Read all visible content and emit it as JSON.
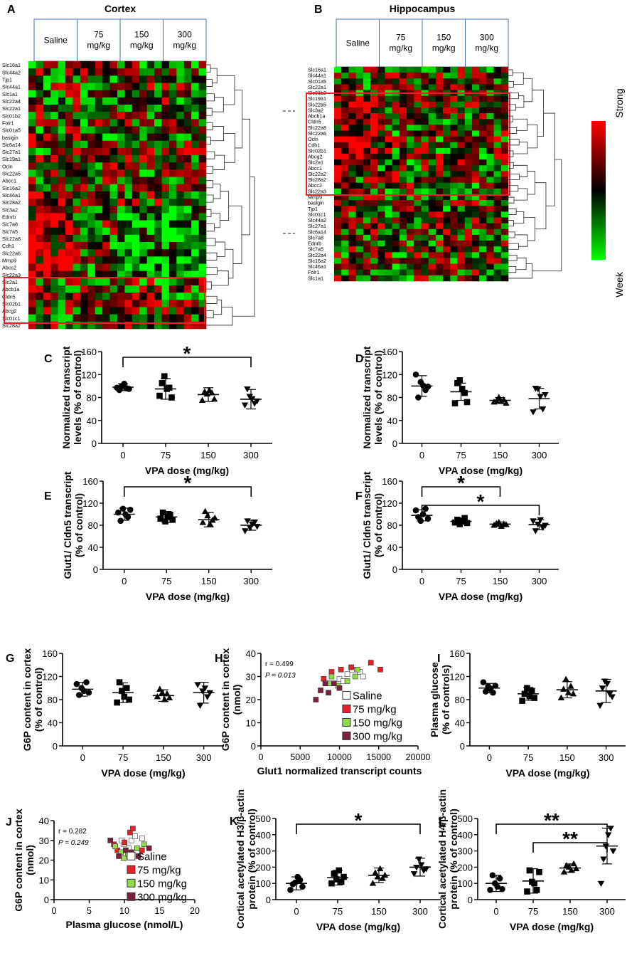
{
  "colors": {
    "strong": "#ff0000",
    "weak": "#00ff00",
    "mid": "#000000",
    "highlight": "#e8202a"
  },
  "heatmaps": [
    {
      "panel": "A",
      "title": "Cortex",
      "groups": [
        "Saline",
        "75 mg/kg",
        "150 mg/kg",
        "300 mg/kg"
      ],
      "genes": [
        "Slc16a1",
        "Slc44a2",
        "Tjp1",
        "Slc44a1",
        "Slc1a1",
        "Slc22a4",
        "Slc22a1",
        "Slc01b2",
        "Folr1",
        "Slc01a5",
        "basigin",
        "Slc6a14",
        "Slc27a1",
        "Slc19a1",
        "Ocln",
        "Slc22a5",
        "Abcc1",
        "Slc16a2",
        "Slc46a1",
        "Slc28a2",
        "Slc3a2",
        "Ednrb",
        "Slc7a8",
        "Slc7a5",
        "Slc22a8",
        "Cdh1",
        "Slc22a6",
        "Mmp9",
        "Abcc2",
        "Slc22a3",
        "Slc2a1",
        "Abcb1a",
        "Cldn5",
        "Slc02b1",
        "Abcg2",
        "Slc01c1",
        "Slc28a2"
      ]
    },
    {
      "panel": "B",
      "title": "Hippocampus",
      "groups": [
        "Saline",
        "75 mg/kg",
        "150 mg/kg",
        "300 mg/kg"
      ],
      "genes": [
        "Slc16a1",
        "Slc44a1",
        "Slc01a5",
        "Slc22a1",
        "Slc01b2",
        "Slc19a1",
        "Slc22a5",
        "Slc3a2",
        "Abcb1a",
        "Cldn5",
        "Slc22a8",
        "Slc22a6",
        "Ocln",
        "Cdh1",
        "Slc02b1",
        "Abcg2",
        "Slc2a1",
        "Abcc1",
        "Slc22a2",
        "Slc28a2",
        "Abcc2",
        "Slc22a3",
        "Mmp9",
        "basigin",
        "Tjp1",
        "Slc01c1",
        "Slc44a2",
        "Slc27a1",
        "Slc6a14",
        "Slc7a8",
        "Ednrb",
        "Slc7a5",
        "Slc22a4",
        "Slc16a2",
        "Slc46a1",
        "Folr1",
        "Slc1a1"
      ]
    }
  ],
  "colorbar": {
    "top": "Strong",
    "bottom": "Week"
  },
  "chart_data": [
    {
      "panel": "C",
      "type": "scatter",
      "ylabel": "Normalized transcript levels  (% of control)",
      "xlabel": "VPA dose (mg/kg)",
      "categories": [
        "0",
        "75",
        "150",
        "300"
      ],
      "ylim": [
        0,
        160
      ],
      "yticks": [
        0,
        40,
        80,
        120,
        160
      ],
      "means": [
        98,
        95,
        85,
        77
      ],
      "sd": [
        6,
        18,
        12,
        17
      ],
      "series": [
        {
          "values": [
            [
              97,
              93,
              100,
              104,
              96,
              95
            ],
            [
              83,
              105,
              117,
              95,
              97,
              80
            ],
            [
              75,
              90,
              86,
              92,
              88,
              77
            ],
            [
              67,
              95,
              82,
              78,
              70,
              74
            ]
          ]
        }
      ],
      "markers": [
        "circle",
        "square",
        "triangle",
        "triangle-down"
      ],
      "brackets": [
        {
          "from": 0,
          "to": 3,
          "label": "*"
        }
      ]
    },
    {
      "panel": "D",
      "type": "scatter",
      "ylabel": "Normalized transcript levels (% of control)",
      "xlabel": "VPA dose (mg/kg)",
      "categories": [
        "0",
        "75",
        "150",
        "300"
      ],
      "ylim": [
        0,
        160
      ],
      "yticks": [
        0,
        40,
        80,
        120,
        160
      ],
      "means": [
        100,
        90,
        75,
        78
      ],
      "sd": [
        18,
        15,
        5,
        18
      ],
      "series": [
        {
          "values": [
            [
              120,
              80,
              107,
              101,
              93,
              99
            ],
            [
              70,
              105,
              110,
              95,
              88,
              72
            ],
            [
              72,
              74,
              80,
              73,
              76,
              70
            ],
            [
              55,
              96,
              95,
              82,
              60,
              85
            ]
          ]
        }
      ],
      "markers": [
        "circle",
        "square",
        "triangle",
        "triangle-down"
      ],
      "brackets": []
    },
    {
      "panel": "E",
      "type": "scatter",
      "ylabel": "Glut1/ Cldn5 transcript (% of control)",
      "xlabel": "VPA dose (mg/kg)",
      "categories": [
        "0",
        "75",
        "150",
        "300"
      ],
      "ylim": [
        0,
        160
      ],
      "yticks": [
        0,
        40,
        80,
        120,
        160
      ],
      "means": [
        100,
        95,
        90,
        80
      ],
      "sd": [
        11,
        10,
        13,
        9
      ],
      "series": [
        {
          "values": [
            [
              103,
              88,
              110,
              100,
              95,
              108
            ],
            [
              92,
              103,
              87,
              95,
              99,
              90
            ],
            [
              85,
              105,
              97,
              82,
              89,
              93
            ],
            [
              70,
              88,
              76,
              82,
              86,
              78
            ]
          ]
        }
      ],
      "markers": [
        "circle",
        "square",
        "triangle",
        "triangle-down"
      ],
      "brackets": [
        {
          "from": 0,
          "to": 3,
          "label": "*"
        }
      ]
    },
    {
      "panel": "F",
      "type": "scatter",
      "ylabel": "Glut1/ Cldn5 transcript (% of control)",
      "xlabel": "VPA dose (mg/kg)",
      "categories": [
        "0",
        "75",
        "150",
        "300"
      ],
      "ylim": [
        0,
        160
      ],
      "yticks": [
        0,
        40,
        80,
        120,
        160
      ],
      "means": [
        98,
        87,
        82,
        81
      ],
      "sd": [
        10,
        5,
        4,
        9
      ],
      "series": [
        {
          "values": [
            [
              107,
              95,
              88,
              100,
              110,
              92
            ],
            [
              85,
              90,
              82,
              88,
              93,
              84
            ],
            [
              80,
              83,
              85,
              78,
              82,
              81
            ],
            [
              88,
              70,
              82,
              90,
              76,
              80
            ]
          ]
        }
      ],
      "markers": [
        "circle",
        "square",
        "triangle",
        "triangle-down"
      ],
      "brackets": [
        {
          "from": 0,
          "to": 2,
          "label": "*"
        },
        {
          "from": 0,
          "to": 3,
          "label": "*"
        }
      ]
    },
    {
      "panel": "G",
      "type": "scatter",
      "ylabel": "G6P content in cortex (% of control)",
      "xlabel": "VPA dose (mg/kg)",
      "categories": [
        "0",
        "75",
        "150",
        "300"
      ],
      "ylim": [
        0,
        160
      ],
      "yticks": [
        0,
        40,
        80,
        120,
        160
      ],
      "means": [
        98,
        92,
        87,
        92
      ],
      "sd": [
        12,
        17,
        10,
        18
      ],
      "series": [
        {
          "values": [
            [
              107,
              88,
              100,
              95,
              110,
              92
            ],
            [
              75,
              110,
              95,
              85,
              100,
              80
            ],
            [
              85,
              98,
              92,
              80,
              90,
              83
            ],
            [
              106,
              70,
              95,
              100,
              85,
              92
            ]
          ]
        }
      ],
      "markers": [
        "circle",
        "square",
        "triangle",
        "triangle-down"
      ],
      "brackets": []
    },
    {
      "panel": "H",
      "type": "scatter",
      "ylabel": "G6P content in cortex (nmol)",
      "xlabel": "Glut1 normalized transcript counts",
      "xlim": [
        0,
        20000
      ],
      "xticks": [
        0,
        5000,
        10000,
        15000,
        20000
      ],
      "ylim": [
        0,
        40
      ],
      "yticks": [
        0,
        10,
        20,
        30,
        40
      ],
      "annotation": {
        "r": "r = 0.499",
        "p": "P = 0.013"
      },
      "series": [
        {
          "name": "Saline",
          "color": "#ffffff",
          "points": [
            [
              10000,
              29
            ],
            [
              11000,
              31
            ],
            [
              11600,
              33
            ],
            [
              12600,
              32
            ],
            [
              13000,
              30
            ],
            [
              10500,
              28
            ]
          ]
        },
        {
          "name": "75 mg/kg",
          "color": "#e8202a",
          "points": [
            [
              8000,
              29
            ],
            [
              9000,
              32
            ],
            [
              10200,
              33
            ],
            [
              11500,
              34
            ],
            [
              14000,
              36
            ],
            [
              15200,
              33
            ]
          ]
        },
        {
          "name": "150 mg/kg",
          "color": "#8ddc48",
          "points": [
            [
              8700,
              27
            ],
            [
              9800,
              26
            ],
            [
              11000,
              28
            ],
            [
              12000,
              30
            ],
            [
              12300,
              33
            ],
            [
              9000,
              30
            ]
          ]
        },
        {
          "name": "300 mg/kg",
          "color": "#7b1f3c",
          "points": [
            [
              7000,
              20
            ],
            [
              7600,
              24
            ],
            [
              8200,
              27
            ],
            [
              9300,
              27
            ],
            [
              10000,
              25
            ],
            [
              8600,
              23
            ]
          ]
        }
      ]
    },
    {
      "panel": "I",
      "type": "scatter",
      "ylabel": "Plasma glucose (% of controls)",
      "xlabel": "VPA dose (mg/kg)",
      "categories": [
        "0",
        "75",
        "150",
        "300"
      ],
      "ylim": [
        0,
        160
      ],
      "yticks": [
        0,
        40,
        80,
        120,
        160
      ],
      "means": [
        100,
        90,
        97,
        95
      ],
      "sd": [
        8,
        11,
        14,
        20
      ],
      "series": [
        {
          "values": [
            [
              110,
              94,
              103,
              99,
              92,
              104
            ],
            [
              78,
              90,
              100,
              86,
              95,
              83
            ],
            [
              83,
              98,
              115,
              92,
              103,
              90
            ],
            [
              70,
              100,
              112,
              108,
              90,
              85
            ]
          ]
        }
      ],
      "markers": [
        "circle",
        "square",
        "triangle",
        "triangle-down"
      ],
      "brackets": []
    },
    {
      "panel": "J",
      "type": "scatter",
      "ylabel": "G6P content in cortex (nmol)",
      "xlabel": "Plasma glucose (nmol/L)",
      "xlim": [
        0,
        20
      ],
      "xticks": [
        0,
        5,
        10,
        15,
        20
      ],
      "ylim": [
        0,
        40
      ],
      "yticks": [
        0,
        10,
        20,
        30,
        40
      ],
      "annotation": {
        "r": "r = 0.282",
        "p": "P = 0.249"
      },
      "series": [
        {
          "name": "Saline",
          "color": "#ffffff",
          "points": [
            [
              10,
              28
            ],
            [
              11,
              30
            ],
            [
              11.5,
              32
            ],
            [
              12.5,
              31
            ],
            [
              10.6,
              26
            ],
            [
              9.6,
              30
            ]
          ]
        },
        {
          "name": "75 mg/kg",
          "color": "#e8202a",
          "points": [
            [
              9,
              25
            ],
            [
              10,
              29
            ],
            [
              10.8,
              34
            ],
            [
              11.2,
              36
            ],
            [
              12.5,
              25
            ],
            [
              8.5,
              28
            ]
          ]
        },
        {
          "name": "150 mg/kg",
          "color": "#8ddc48",
          "points": [
            [
              8.7,
              27
            ],
            [
              9.5,
              24
            ],
            [
              10.5,
              23
            ],
            [
              11.8,
              26
            ],
            [
              12.8,
              28
            ],
            [
              9.9,
              21
            ]
          ]
        },
        {
          "name": "300 mg/kg",
          "color": "#7b1f3c",
          "points": [
            [
              8,
              30
            ],
            [
              9.2,
              22
            ],
            [
              10.2,
              25
            ],
            [
              11,
              24
            ],
            [
              12,
              22
            ],
            [
              13.5,
              26
            ]
          ]
        }
      ]
    },
    {
      "panel": "K",
      "type": "scatter",
      "ylabel": "Cortical acetylated H3/β-actin protein (% of control)",
      "xlabel": "VPA dose (mg/kg)",
      "categories": [
        "0",
        "75",
        "150",
        "300"
      ],
      "ylim": [
        0,
        500
      ],
      "yticks": [
        0,
        100,
        200,
        300,
        400,
        500
      ],
      "means": [
        100,
        135,
        150,
        200
      ],
      "sd": [
        40,
        45,
        45,
        55
      ],
      "series": [
        {
          "values": [
            [
              60,
              95,
              105,
              140,
              120,
              80
            ],
            [
              100,
              160,
              125,
              180,
              110,
              140
            ],
            [
              100,
              165,
              140,
              190,
              130,
              150
            ],
            [
              160,
              200,
              250,
              215,
              180,
              190
            ]
          ]
        }
      ],
      "markers": [
        "circle",
        "square",
        "triangle",
        "triangle-down"
      ],
      "brackets": [
        {
          "from": 0,
          "to": 3,
          "label": "*"
        }
      ]
    },
    {
      "panel": "L",
      "type": "scatter",
      "ylabel": "Cortical acetylated H4/β-actin protein (% of control)",
      "xlabel": "VPA dose (mg/kg)",
      "categories": [
        "0",
        "75",
        "150",
        "300"
      ],
      "ylim": [
        0,
        500
      ],
      "yticks": [
        0,
        100,
        200,
        300,
        400,
        500
      ],
      "means": [
        100,
        115,
        195,
        330
      ],
      "sd": [
        50,
        75,
        25,
        110
      ],
      "series": [
        {
          "values": [
            [
              60,
              150,
              100,
              80,
              130,
              65
            ],
            [
              50,
              180,
              110,
              100,
              60,
              170
            ],
            [
              170,
              210,
              200,
              180,
              220,
              190
            ],
            [
              100,
              250,
              330,
              400,
              440,
              300
            ]
          ]
        }
      ],
      "markers": [
        "circle",
        "square",
        "triangle",
        "triangle-down"
      ],
      "brackets": [
        {
          "from": 0,
          "to": 3,
          "label": "**"
        },
        {
          "from": 1,
          "to": 3,
          "label": "**"
        }
      ]
    }
  ]
}
